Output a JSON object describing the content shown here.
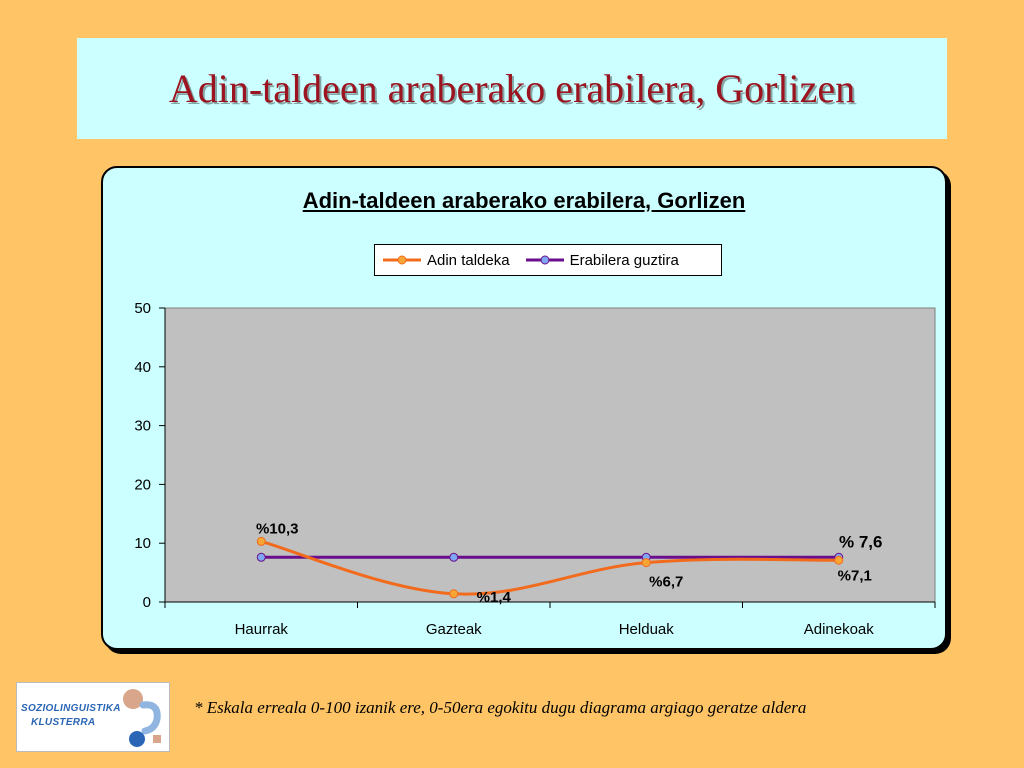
{
  "slide_title": "Adin-taldeen araberako erabilera, Gorlizen",
  "footnote": "* Eskala erreala 0-100 izanik ere, 0-50era egokitu dugu diagrama argiago geratze aldera",
  "logo": {
    "line1": "SOZIOLINGUISTIKA",
    "line2": "KLUSTERRA"
  },
  "chart_data": {
    "type": "line",
    "title": "Adin-taldeen araberako erabilera, Gorlizen",
    "categories": [
      "Haurrak",
      "Gazteak",
      "Helduak",
      "Adinekoak"
    ],
    "ylim": [
      0,
      50
    ],
    "yticks": [
      0,
      10,
      20,
      30,
      40,
      50
    ],
    "grid": false,
    "legend_position": "top",
    "series": [
      {
        "name": "Adin taldeka",
        "values": [
          10.3,
          1.4,
          6.7,
          7.1
        ],
        "labels": [
          "%10,3",
          "%1,4",
          "%6,7",
          "%7,1"
        ],
        "color": "#F26B1D",
        "marker": "#F7A535"
      },
      {
        "name": "Erabilera guztira",
        "values": [
          7.6,
          7.6,
          7.6,
          7.6
        ],
        "labels": [
          "",
          "",
          "",
          "% 7,6"
        ],
        "color": "#6A0E8C",
        "marker": "#7FA6F0"
      }
    ]
  }
}
